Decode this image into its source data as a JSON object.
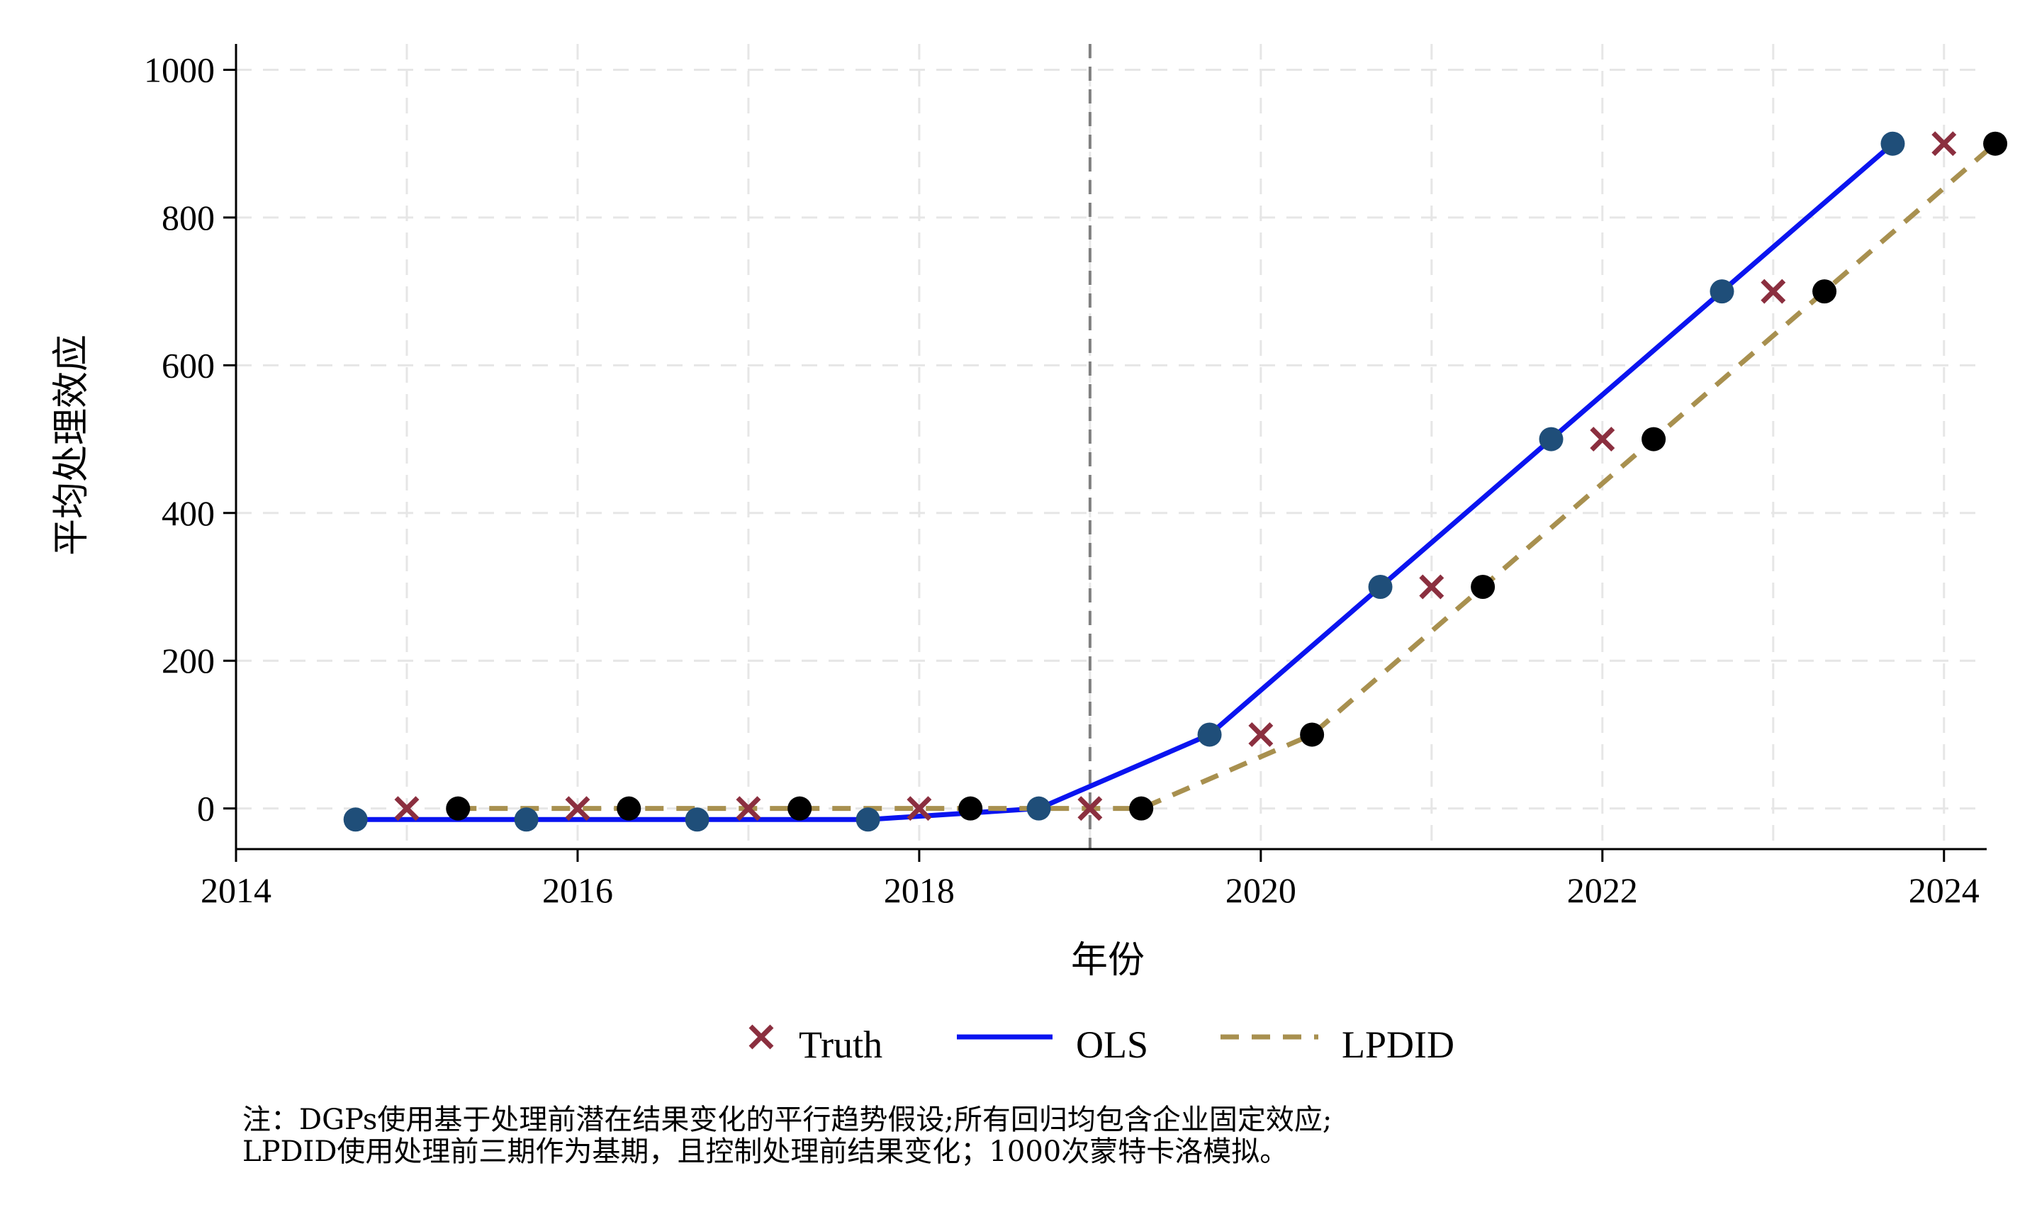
{
  "chart_data": {
    "type": "line",
    "xlabel": "年份",
    "ylabel": "平均处理效应",
    "xlim": [
      2014,
      2024.25
    ],
    "ylim": [
      -55,
      1035
    ],
    "x_ticks": [
      2014,
      2016,
      2018,
      2020,
      2022,
      2024
    ],
    "y_ticks": [
      0,
      200,
      400,
      600,
      800,
      1000
    ],
    "grid": true,
    "treatment_line_x": 2019,
    "legend": {
      "placement": "bottom-center"
    },
    "series": [
      {
        "name": "Truth",
        "style": "x-marker",
        "color": "#8b2f3f",
        "x": [
          2015,
          2016,
          2017,
          2018,
          2019,
          2020,
          2021,
          2022,
          2023,
          2024
        ],
        "y": [
          0,
          0,
          0,
          0,
          0,
          100,
          300,
          500,
          700,
          900
        ]
      },
      {
        "name": "OLS",
        "style": "solid-line",
        "color": "#0a14f0",
        "marker_color": "#1f4e79",
        "x": [
          2014.7,
          2015.7,
          2016.7,
          2017.7,
          2018.7,
          2019.7,
          2020.7,
          2021.7,
          2022.7,
          2023.7
        ],
        "y": [
          -15,
          -15,
          -15,
          -15,
          0,
          100,
          300,
          500,
          700,
          900
        ]
      },
      {
        "name": "LPDID",
        "style": "dashed-line",
        "color": "#a8904f",
        "marker_color": "#000000",
        "x": [
          2015.3,
          2016.3,
          2017.3,
          2018.3,
          2019.3,
          2020.3,
          2021.3,
          2022.3,
          2023.3,
          2024.3
        ],
        "y": [
          0,
          0,
          0,
          0,
          0,
          100,
          300,
          500,
          700,
          900
        ]
      }
    ],
    "note_lines": [
      "注：DGPs使用基于处理前潜在结果变化的平行趋势假设;所有回归均包含企业固定效应;",
      "LPDID使用处理前三期作为基期，且控制处理前结果变化；1000次蒙特卡洛模拟。"
    ]
  }
}
